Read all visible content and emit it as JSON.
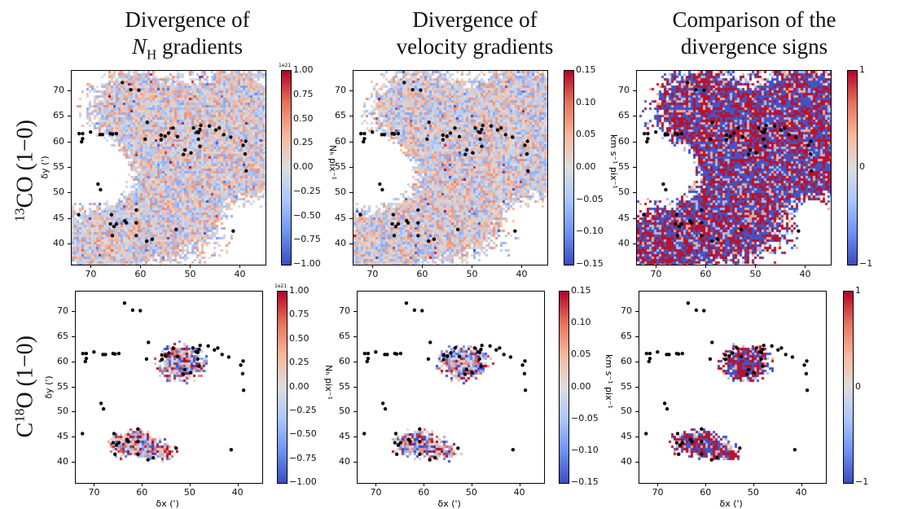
{
  "column_titles": [
    {
      "line1": "Divergence of",
      "line2": "N",
      "line2_sub": "H",
      "line2_rest": " gradients"
    },
    {
      "line1": "Divergence of",
      "line2": "velocity gradients"
    },
    {
      "line1": "Comparison of the",
      "line2": "divergence signs"
    }
  ],
  "row_labels": [
    {
      "sup": "13",
      "text": "CO (1−0)",
      "prefix": ""
    },
    {
      "prefix": "C",
      "sup": "18",
      "text": "O (1−0)"
    }
  ],
  "chart_data": {
    "type": "heatmap",
    "colormap": "coolwarm",
    "xlabel": "δx (')",
    "ylabel": "δy (')",
    "xlim": [
      74,
      35
    ],
    "ylim": [
      36,
      74
    ],
    "xticks": [
      "70",
      "60",
      "50",
      "40"
    ],
    "yticks": [
      "40",
      "45",
      "50",
      "55",
      "60",
      "65",
      "70"
    ],
    "colorbars": [
      {
        "label": "Nₕ pix⁻¹",
        "offset": "1e21",
        "range": [
          -1,
          1
        ],
        "ticks": [
          "1.00",
          "0.75",
          "0.50",
          "0.25",
          "0.00",
          "−0.25",
          "−0.50",
          "−0.75",
          "−1.00"
        ]
      },
      {
        "label": "km s⁻¹ pix⁻¹",
        "range": [
          -0.15,
          0.15
        ],
        "ticks": [
          "0.15",
          "0.10",
          "0.05",
          "0.00",
          "−0.05",
          "−0.10",
          "−0.15"
        ]
      },
      {
        "label": "",
        "range": [
          -1,
          1
        ],
        "ticks": [
          "1",
          "0",
          "−1"
        ]
      }
    ],
    "markers": [
      [
        72.5,
        61.7
      ],
      [
        71.8,
        61.7
      ],
      [
        72,
        60.1
      ],
      [
        71.8,
        60.7
      ],
      [
        70.2,
        62
      ],
      [
        68.3,
        61.5
      ],
      [
        67.8,
        61.5
      ],
      [
        66.2,
        61.7
      ],
      [
        65.8,
        61.6
      ],
      [
        65,
        61.7
      ],
      [
        59.2,
        60.6
      ],
      [
        58.8,
        63.9
      ],
      [
        56,
        61.4
      ],
      [
        56,
        60.5
      ],
      [
        55.2,
        61.2
      ],
      [
        54.5,
        61.8
      ],
      [
        53.6,
        62.8
      ],
      [
        52.7,
        61.1
      ],
      [
        51.2,
        58.5
      ],
      [
        51.5,
        57.6
      ],
      [
        50,
        57.9
      ],
      [
        49.5,
        62.8
      ],
      [
        48.8,
        62
      ],
      [
        48.5,
        61.9
      ],
      [
        48.2,
        62.5
      ],
      [
        48.5,
        60.6
      ],
      [
        48.2,
        59.2
      ],
      [
        48,
        63.3
      ],
      [
        46.3,
        63.2
      ],
      [
        45,
        62.4
      ],
      [
        44.3,
        62.8
      ],
      [
        43.4,
        61.5
      ],
      [
        42,
        61
      ],
      [
        39.5,
        59.4
      ],
      [
        39,
        60.2
      ],
      [
        39.1,
        57.7
      ],
      [
        38.9,
        54.4
      ],
      [
        68.7,
        51.8
      ],
      [
        68.2,
        50.7
      ],
      [
        72.6,
        45.8
      ],
      [
        66,
        45.8
      ],
      [
        66.2,
        44
      ],
      [
        65,
        44
      ],
      [
        65.5,
        43.5
      ],
      [
        63.3,
        44.6
      ],
      [
        63,
        44.2
      ],
      [
        61,
        44.2
      ],
      [
        61,
        46.7
      ],
      [
        65.8,
        41.7
      ],
      [
        61,
        41.7
      ],
      [
        58.9,
        40.6
      ],
      [
        57.8,
        41
      ],
      [
        53,
        42.9
      ],
      [
        41.5,
        42.6
      ],
      [
        63.8,
        71.7
      ],
      [
        62.1,
        70.3
      ],
      [
        60.5,
        70.2
      ]
    ],
    "rows": [
      "13CO (1-0)",
      "C18O (1-0)"
    ],
    "columns": [
      "Divergence of N_H gradients",
      "Divergence of velocity gradients",
      "Comparison of the divergence signs"
    ]
  },
  "colors": {
    "negative": "#3b4cc0",
    "zero": "#dddddd",
    "positive": "#b40426",
    "markers": "#000000"
  }
}
